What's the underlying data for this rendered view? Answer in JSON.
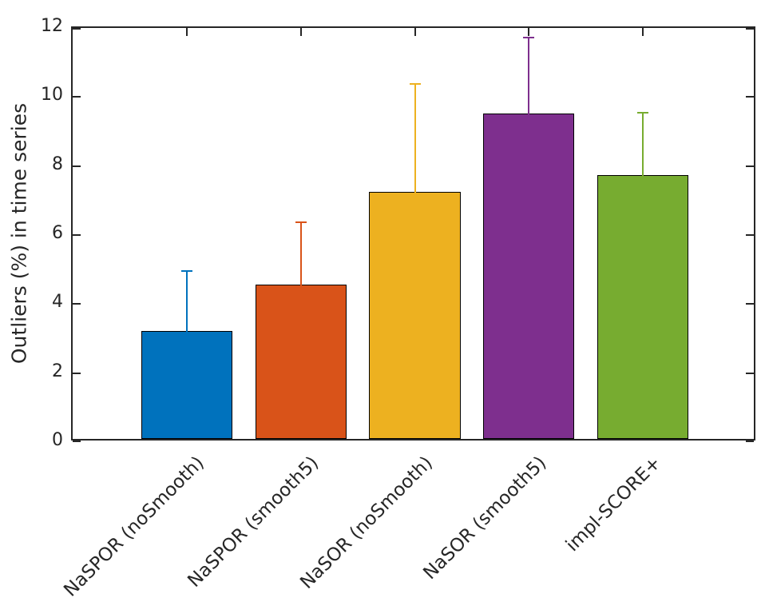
{
  "figure": {
    "background": "#ffffff",
    "axis_color": "#262626",
    "text_color": "#262626"
  },
  "chart_data": {
    "type": "bar",
    "title": "",
    "xlabel": "",
    "ylabel": "Outliers (%) in time series",
    "categories": [
      "NaSPOR (noSmooth)",
      "NaSPOR (smooth5)",
      "NaSOR (noSmooth)",
      "NaSOR (smooth5)",
      "impl-SCORE+"
    ],
    "values": [
      3.13,
      4.47,
      7.17,
      9.42,
      7.64
    ],
    "error_plus": [
      1.83,
      1.91,
      3.21,
      2.3,
      1.9
    ],
    "error_minus": [
      0,
      0,
      0,
      0,
      0
    ],
    "bar_colors": [
      "#0072BD",
      "#D95319",
      "#EDB120",
      "#7E2F8E",
      "#77AC30"
    ],
    "bar_edge_color": "#000000",
    "ylim": [
      0,
      12
    ],
    "xlim": [
      0,
      6
    ],
    "yticks": [
      0,
      2,
      4,
      6,
      8,
      10,
      12
    ],
    "x_positions": [
      1,
      2,
      3,
      4,
      5
    ],
    "bar_width_fraction": 0.8,
    "x_tick_rotation_deg": 45,
    "grid": false,
    "legend": null,
    "box": true,
    "tick_direction": "in"
  }
}
